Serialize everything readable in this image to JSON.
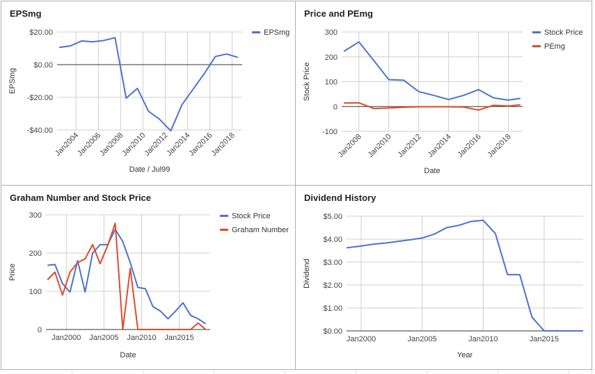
{
  "colors": {
    "blue": "#4a72d0",
    "red": "#e04a2b",
    "grid": "#cfcfcf",
    "zero": "#333333",
    "axis_text": "#444444"
  },
  "chart_data": [
    {
      "type": "line",
      "title": "EPSmg",
      "xlabel": "Date / Jul99",
      "ylabel": "EPSmg",
      "xlim": [
        2002.3,
        2018.9
      ],
      "ylim": [
        -40,
        20
      ],
      "y_ticks": [
        -40,
        -20,
        0,
        20
      ],
      "y_tick_labels": [
        "-$40.00",
        "-$20.00",
        "$0.00",
        "$20.00"
      ],
      "x_ticks": [
        2004,
        2006,
        2008,
        2010,
        2012,
        2014,
        2016,
        2018
      ],
      "x_tick_labels": [
        "Jan2004",
        "Jan2006",
        "Jan2008",
        "Jan2010",
        "Jan2012",
        "Jan2014",
        "Jan2016",
        "Jan2018"
      ],
      "legend_position": "top-right",
      "zero_line": true,
      "series": [
        {
          "name": "EPSmg",
          "color": "#4a72d0",
          "x": [
            2002.5,
            2003.5,
            2004.5,
            2005.5,
            2006.5,
            2007.5,
            2008.5,
            2009.5,
            2010.5,
            2011.5,
            2012.5,
            2013.5,
            2014.5,
            2015.5,
            2016.5,
            2017.5,
            2018.5
          ],
          "y": [
            10.5,
            11.5,
            14.5,
            14,
            14.8,
            16.5,
            -20.5,
            -14.5,
            -28.5,
            -33.5,
            -40.5,
            -24.5,
            -15,
            -5.5,
            5,
            6.5,
            4.5
          ]
        }
      ]
    },
    {
      "type": "line",
      "title": "Price and PEmg",
      "xlabel": "Date",
      "ylabel": "Stock Price",
      "xlim": [
        2006.85,
        2018.95
      ],
      "ylim": [
        -100,
        300
      ],
      "y_ticks": [
        -100,
        0,
        100,
        200,
        300
      ],
      "y_tick_labels": [
        "-100",
        "0",
        "100",
        "200",
        "300"
      ],
      "x_ticks": [
        2008,
        2010,
        2012,
        2014,
        2016,
        2018
      ],
      "x_tick_labels": [
        "Jan2008",
        "Jan2010",
        "Jan2012",
        "Jan2014",
        "Jan2016",
        "Jan2018"
      ],
      "legend_position": "top-right",
      "zero_line": true,
      "series": [
        {
          "name": "Stock Price",
          "color": "#4a72d0",
          "x": [
            2007,
            2008,
            2009,
            2010,
            2011,
            2012,
            2013,
            2014,
            2015,
            2016,
            2017,
            2018,
            2018.8
          ],
          "y": [
            222,
            260,
            185,
            108,
            106,
            60,
            45,
            28,
            45,
            68,
            35,
            26,
            33
          ]
        },
        {
          "name": "PEmg",
          "color": "#e04a2b",
          "x": [
            2007,
            2008,
            2009,
            2010,
            2011,
            2012,
            2013,
            2014,
            2015,
            2016,
            2017,
            2018,
            2018.8
          ],
          "y": [
            14,
            15,
            -8,
            -6,
            -3,
            -1,
            -1,
            -1,
            -2,
            -14,
            5,
            2,
            7
          ]
        }
      ]
    },
    {
      "type": "line",
      "title": "Graham Number and Stock Price",
      "xlabel": "Date",
      "ylabel": "Price",
      "xlim": [
        1997.3,
        2019.1
      ],
      "ylim": [
        0,
        300
      ],
      "y_ticks": [
        0,
        100,
        200,
        300
      ],
      "y_tick_labels": [
        "0",
        "100",
        "200",
        "300"
      ],
      "x_ticks": [
        2000,
        2005,
        2010,
        2015
      ],
      "x_tick_labels": [
        "Jan2000",
        "Jan2005",
        "Jan2010",
        "Jan2015"
      ],
      "legend_position": "top-right",
      "zero_line": false,
      "series": [
        {
          "name": "Stock Price",
          "color": "#4a72d0",
          "x": [
            1997.5,
            1998.5,
            1999.5,
            2000.5,
            2001.5,
            2002.5,
            2003.5,
            2004.5,
            2005.5,
            2006.5,
            2007.5,
            2008.5,
            2009.5,
            2010.5,
            2011.5,
            2012.5,
            2013.5,
            2014.5,
            2015.5,
            2016.5,
            2017.5,
            2018.5
          ],
          "y": [
            168,
            170,
            120,
            98,
            180,
            98,
            200,
            222,
            222,
            262,
            230,
            175,
            110,
            107,
            60,
            48,
            28,
            48,
            70,
            37,
            28,
            15
          ]
        },
        {
          "name": "Graham Number",
          "color": "#e04a2b",
          "x": [
            1997.5,
            1998.5,
            1999.5,
            2000.5,
            2001.5,
            2002.5,
            2003.5,
            2004.5,
            2005.5,
            2006.5,
            2007.5,
            2008.5,
            2009.5,
            2010.5,
            2011.5,
            2012.5,
            2013.5,
            2014.5,
            2015.5,
            2016.5,
            2017.5,
            2018.5
          ],
          "y": [
            130,
            150,
            90,
            150,
            175,
            185,
            222,
            172,
            220,
            278,
            0,
            160,
            0,
            0,
            0,
            0,
            0,
            0,
            0,
            0,
            17,
            0
          ]
        }
      ]
    },
    {
      "type": "line",
      "title": "Dividend History",
      "xlabel": "Year",
      "ylabel": "Dividend",
      "xlim": [
        1998.8,
        2018.2
      ],
      "ylim": [
        0,
        5
      ],
      "y_ticks": [
        0,
        1,
        2,
        3,
        4,
        5
      ],
      "y_tick_labels": [
        "$0.00",
        "$1.00",
        "$2.00",
        "$3.00",
        "$4.00",
        "$5.00"
      ],
      "x_ticks": [
        2000,
        2005,
        2010,
        2015
      ],
      "x_tick_labels": [
        "Jan2000",
        "Jan2005",
        "Jan2010",
        "Jan2015"
      ],
      "zero_line": false,
      "series": [
        {
          "color": "#4a72d0",
          "x": [
            1998.8,
            2000,
            2001,
            2002,
            2003,
            2004,
            2005,
            2006,
            2007,
            2008,
            2009,
            2010,
            2011,
            2012,
            2013,
            2014,
            2015,
            2016,
            2017,
            2018.2
          ],
          "y": [
            3.62,
            3.7,
            3.78,
            3.83,
            3.9,
            3.97,
            4.05,
            4.22,
            4.5,
            4.6,
            4.77,
            4.82,
            4.25,
            2.45,
            2.45,
            0.6,
            0,
            0,
            0,
            0
          ]
        }
      ]
    }
  ]
}
